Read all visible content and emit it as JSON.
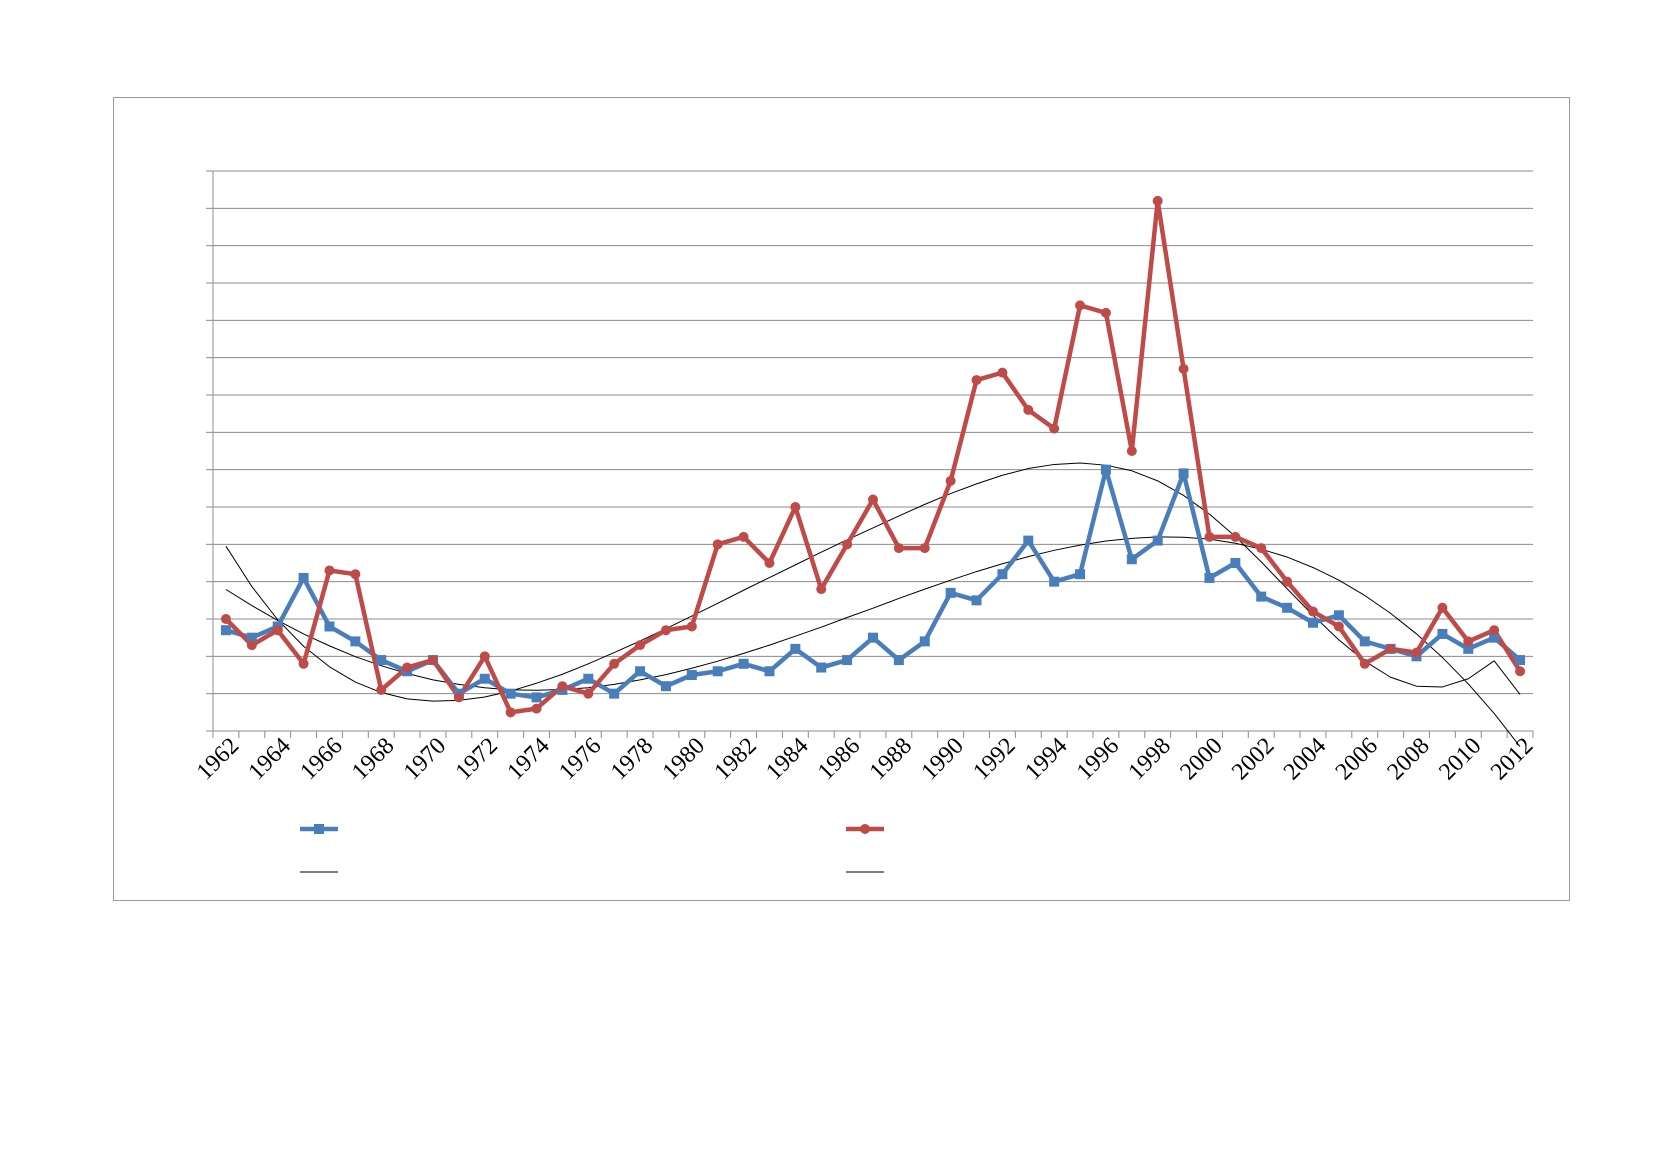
{
  "chart_data": {
    "type": "line",
    "title": "",
    "xlabel": "",
    "ylabel": "",
    "x": [
      1962,
      1963,
      1964,
      1965,
      1966,
      1967,
      1968,
      1969,
      1970,
      1971,
      1972,
      1973,
      1974,
      1975,
      1976,
      1977,
      1978,
      1979,
      1980,
      1981,
      1982,
      1983,
      1984,
      1985,
      1986,
      1987,
      1988,
      1989,
      1990,
      1991,
      1992,
      1993,
      1994,
      1995,
      1996,
      1997,
      1998,
      1999,
      2000,
      2001,
      2002,
      2003,
      2004,
      2005,
      2006,
      2007,
      2008,
      2009,
      2010,
      2011,
      2012
    ],
    "x_tick_labels": [
      "1962",
      "1964",
      "1966",
      "1968",
      "1970",
      "1972",
      "1974",
      "1976",
      "1978",
      "1980",
      "1982",
      "1984",
      "1986",
      "1988",
      "1990",
      "1992",
      "1994",
      "1996",
      "1998",
      "2000",
      "2002",
      "2004",
      "2006",
      "2008",
      "2010",
      "2012"
    ],
    "ylim": [
      0,
      15
    ],
    "grid": true,
    "legend_position": "bottom",
    "series": [
      {
        "marker": "square",
        "color": "#4a7ebb",
        "values": [
          2.7,
          2.5,
          2.8,
          4.1,
          2.8,
          2.4,
          1.9,
          1.6,
          1.9,
          1.0,
          1.4,
          1.0,
          0.9,
          1.1,
          1.4,
          1.0,
          1.6,
          1.2,
          1.5,
          1.6,
          1.8,
          1.6,
          2.2,
          1.7,
          1.9,
          2.5,
          1.9,
          2.4,
          3.7,
          3.5,
          4.2,
          5.1,
          4.0,
          4.2,
          7.0,
          4.6,
          5.1,
          6.9,
          4.1,
          4.5,
          3.6,
          3.3,
          2.9,
          3.1,
          2.4,
          2.2,
          2.0,
          2.6,
          2.2,
          2.5,
          1.9
        ]
      },
      {
        "marker": "circle",
        "color": "#be4b48",
        "values": [
          3.0,
          2.3,
          2.7,
          1.8,
          4.3,
          4.2,
          1.1,
          1.7,
          1.9,
          0.9,
          2.0,
          0.5,
          0.6,
          1.2,
          1.0,
          1.8,
          2.3,
          2.7,
          2.8,
          5.0,
          5.2,
          4.5,
          6.0,
          3.8,
          5.0,
          6.2,
          4.9,
          4.9,
          6.7,
          9.4,
          9.6,
          8.6,
          8.1,
          11.4,
          11.2,
          7.5,
          14.2,
          9.7,
          5.2,
          5.2,
          4.9,
          4.0,
          3.2,
          2.8,
          1.8,
          2.2,
          2.1,
          3.3,
          2.4,
          2.7,
          1.6
        ]
      },
      {
        "kind": "trendline",
        "color": "#000000",
        "values": [
          3.79,
          3.36,
          2.96,
          2.6,
          2.28,
          1.99,
          1.75,
          1.54,
          1.37,
          1.25,
          1.16,
          1.1,
          1.09,
          1.11,
          1.16,
          1.25,
          1.37,
          1.51,
          1.68,
          1.87,
          2.08,
          2.3,
          2.54,
          2.78,
          3.04,
          3.29,
          3.55,
          3.8,
          4.04,
          4.27,
          4.48,
          4.67,
          4.84,
          4.98,
          5.09,
          5.16,
          5.2,
          5.19,
          5.14,
          5.03,
          4.87,
          4.66,
          4.38,
          4.04,
          3.63,
          3.15,
          2.6,
          1.97,
          1.26,
          0.47,
          -0.42
        ]
      },
      {
        "kind": "trendline",
        "color": "#000000",
        "values": [
          4.95,
          3.87,
          2.98,
          2.27,
          1.72,
          1.31,
          1.03,
          0.86,
          0.8,
          0.82,
          0.91,
          1.07,
          1.28,
          1.52,
          1.8,
          2.1,
          2.41,
          2.74,
          3.08,
          3.42,
          3.77,
          4.11,
          4.45,
          4.79,
          5.12,
          5.44,
          5.76,
          6.07,
          6.36,
          6.62,
          6.85,
          7.03,
          7.14,
          7.18,
          7.12,
          6.97,
          6.7,
          6.31,
          5.81,
          5.21,
          4.53,
          3.81,
          3.1,
          2.44,
          1.87,
          1.44,
          1.2,
          1.18,
          1.4,
          1.88,
          0.98
        ]
      }
    ]
  }
}
